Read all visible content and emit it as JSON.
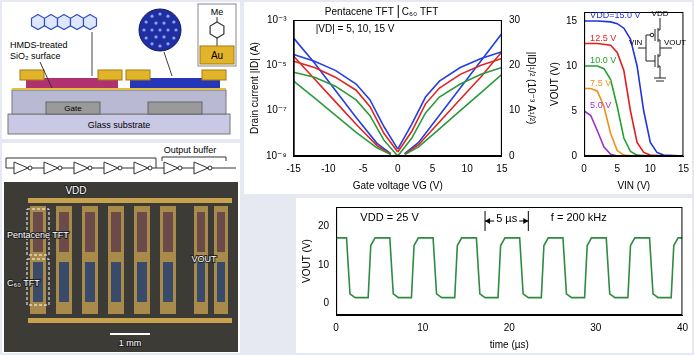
{
  "schematic": {
    "substituent": "Me",
    "electrode": "Au",
    "surface": [
      "HMDS-treated",
      "SiO₂ surface"
    ],
    "gate": "Gate",
    "substrate": "Glass substrate"
  },
  "circuit_photo": {
    "buffer": "Output buffer",
    "supply": "VDD",
    "p_tft": "Pentacene TFT",
    "n_tft": "C₆₀ TFT",
    "output": "VOUT",
    "scale": "1 mm"
  },
  "chart_data": [
    {
      "type": "line",
      "annotations": [
        "Pentacene TFT",
        "C₆₀ TFT",
        "|VD| = 5, 10, 15 V"
      ],
      "x_label": "Gate voltage VG (V)",
      "y_label": "Drain current |ID| (A)",
      "y2_label": "|ID|¹/² (10⁻³ A¹/²)",
      "xlim": [
        -15,
        15
      ],
      "xticks": [
        -15,
        -10,
        -5,
        0,
        5,
        10,
        15
      ],
      "log": "y",
      "ylim": [
        1e-09,
        0.001
      ],
      "yticks": [
        {
          "value": 1e-09,
          "label": "10⁻⁹"
        },
        {
          "value": 1e-07,
          "label": "10⁻⁷"
        },
        {
          "value": 1e-05,
          "label": "10⁻⁵"
        },
        {
          "value": 0.001,
          "label": "10⁻³"
        }
      ],
      "y2lim": [
        0,
        30
      ],
      "y2ticks": [
        0,
        10,
        20,
        30
      ],
      "grid": false,
      "marker": "none",
      "series": [
        {
          "color": "#2a9a3a",
          "x": [
            -15,
            -12,
            -9,
            -6,
            -4,
            -2,
            0
          ],
          "values": [
            5e-06,
            3e-06,
            1.2e-06,
            3e-07,
            6e-08,
            5e-09,
            1e-09
          ]
        },
        {
          "color": "#e02424",
          "x": [
            -15,
            -12,
            -9,
            -6,
            -4,
            -2,
            0
          ],
          "values": [
            1.5e-05,
            8e-06,
            3e-06,
            8e-07,
            1.5e-07,
            1e-08,
            1.5e-09
          ]
        },
        {
          "color": "#2440e0",
          "x": [
            -15,
            -12,
            -9,
            -6,
            -4,
            -2,
            0
          ],
          "values": [
            3e-05,
            1.5e-05,
            6e-06,
            1.5e-06,
            3e-07,
            2e-08,
            2e-09
          ]
        },
        {
          "color": "#2a9a3a",
          "x": [
            0,
            2,
            4,
            6,
            9,
            12,
            15
          ],
          "values": [
            1e-09,
            6e-09,
            8e-08,
            4e-07,
            1.5e-06,
            4e-06,
            8e-06
          ]
        },
        {
          "color": "#e02424",
          "x": [
            0,
            2,
            4,
            6,
            9,
            12,
            15
          ],
          "values": [
            1.5e-09,
            1.2e-08,
            2e-07,
            1e-06,
            4e-06,
            1e-05,
            2e-05
          ]
        },
        {
          "color": "#2440e0",
          "x": [
            0,
            2,
            4,
            6,
            9,
            12,
            15
          ],
          "values": [
            2e-09,
            2.5e-08,
            4e-07,
            2e-06,
            8e-06,
            2e-05,
            4e-05
          ]
        },
        {
          "color": "#2a9a3a",
          "axis": "y2",
          "x": [
            -15,
            -12,
            -9,
            -6,
            -3,
            -1
          ],
          "values": [
            16.5,
            12.8,
            9,
            5.2,
            1.8,
            0.3
          ]
        },
        {
          "color": "#e02424",
          "axis": "y2",
          "x": [
            -15,
            -12,
            -9,
            -6,
            -3,
            -1
          ],
          "values": [
            22,
            17,
            12,
            7,
            2.3,
            0.4
          ]
        },
        {
          "color": "#2440e0",
          "axis": "y2",
          "x": [
            -15,
            -12,
            -9,
            -6,
            -3,
            -1
          ],
          "values": [
            26,
            20.5,
            14.5,
            8.5,
            2.8,
            0.5
          ]
        },
        {
          "color": "#2a9a3a",
          "axis": "y2",
          "x": [
            1,
            3,
            6,
            9,
            12,
            15
          ],
          "values": [
            0.3,
            2,
            6,
            10,
            14,
            18
          ]
        },
        {
          "color": "#e02424",
          "axis": "y2",
          "x": [
            1,
            3,
            6,
            9,
            12,
            15
          ],
          "values": [
            0.4,
            2.5,
            7.5,
            12.5,
            17.5,
            23
          ]
        },
        {
          "color": "#2440e0",
          "axis": "y2",
          "x": [
            1,
            3,
            6,
            9,
            12,
            15
          ],
          "values": [
            0.5,
            3,
            9,
            15,
            21,
            27
          ]
        }
      ]
    },
    {
      "type": "line",
      "annotations": [
        "VDD",
        "VIN",
        "VOUT"
      ],
      "x_label": "VIN (V)",
      "y_label": "VOUT (V)",
      "xlim": [
        0,
        15
      ],
      "xticks": [
        0,
        5,
        10,
        15
      ],
      "ylim": [
        0,
        16
      ],
      "yticks": [
        0,
        5,
        10,
        15
      ],
      "grid": false,
      "marker": "none",
      "series": [
        {
          "name": "VDD=15.0 V",
          "color": "#2233dd",
          "x": [
            0,
            2,
            4,
            5,
            6,
            7,
            8,
            9,
            10,
            11,
            12,
            15
          ],
          "values": [
            15,
            15,
            14.9,
            14.7,
            14.2,
            13,
            10,
            5,
            1.5,
            0.4,
            0.1,
            0
          ]
        },
        {
          "name": "12.5 V",
          "color": "#e02020",
          "x": [
            0,
            2,
            4,
            5,
            6,
            7,
            8,
            9,
            10,
            12.5
          ],
          "values": [
            12.5,
            12.5,
            12.3,
            11.5,
            9.5,
            5,
            1.5,
            0.4,
            0.1,
            0
          ]
        },
        {
          "name": "10.0 V",
          "color": "#22a030",
          "x": [
            0,
            2,
            3,
            4,
            5,
            6,
            7,
            8,
            10
          ],
          "values": [
            10,
            10,
            9.7,
            8.5,
            5.5,
            2,
            0.5,
            0.1,
            0
          ]
        },
        {
          "name": "7.5 V",
          "color": "#f0901a",
          "x": [
            0,
            1,
            2,
            3,
            4,
            5,
            6,
            7.5
          ],
          "values": [
            7.5,
            7.5,
            7.2,
            5.5,
            2.5,
            0.6,
            0.1,
            0
          ]
        },
        {
          "name": "5.0 V",
          "color": "#9b30d0",
          "x": [
            0,
            1,
            2,
            3,
            4,
            5
          ],
          "values": [
            5,
            4.5,
            2.8,
            1,
            0.2,
            0
          ]
        }
      ]
    },
    {
      "type": "line",
      "annotations": [
        "VDD = 25 V",
        "5 µs",
        "f = 200 kHz"
      ],
      "x_label": "time (µs)",
      "y_label": "VOUT (V)",
      "xlim": [
        0,
        40
      ],
      "xticks": [
        0,
        10,
        20,
        30,
        40
      ],
      "ylim": [
        -3,
        25
      ],
      "yticks": [
        0,
        10,
        20
      ],
      "grid": false,
      "marker": "none",
      "series": [
        {
          "color": "#2e8b40",
          "x": [
            0,
            1.2,
            1.6,
            2.2,
            3.7,
            4.0,
            4.5,
            6.2,
            6.6,
            7.2,
            8.7,
            9.0,
            9.5,
            11.2,
            11.6,
            12.2,
            13.7,
            14.0,
            14.5,
            16.2,
            16.6,
            17.2,
            18.7,
            19.0,
            19.5,
            21.2,
            21.6,
            22.2,
            23.7,
            24.0,
            24.5,
            26.2,
            26.6,
            27.2,
            28.7,
            29.0,
            29.5,
            31.2,
            31.6,
            32.2,
            33.7,
            34.0,
            34.5,
            36.2,
            36.6,
            37.2,
            38.7,
            39.0,
            39.5,
            40
          ],
          "values": [
            17,
            17,
            2.5,
            1.5,
            1.5,
            15,
            17,
            17,
            2.5,
            1.5,
            1.5,
            15,
            17,
            17,
            2.5,
            1.5,
            1.5,
            15,
            17,
            17,
            2.5,
            1.5,
            1.5,
            15,
            17,
            17,
            2.5,
            1.5,
            1.5,
            15,
            17,
            17,
            2.5,
            1.5,
            1.5,
            15,
            17,
            17,
            2.5,
            1.5,
            1.5,
            15,
            17,
            17,
            2.5,
            1.5,
            1.5,
            15,
            17,
            17
          ]
        }
      ]
    }
  ]
}
